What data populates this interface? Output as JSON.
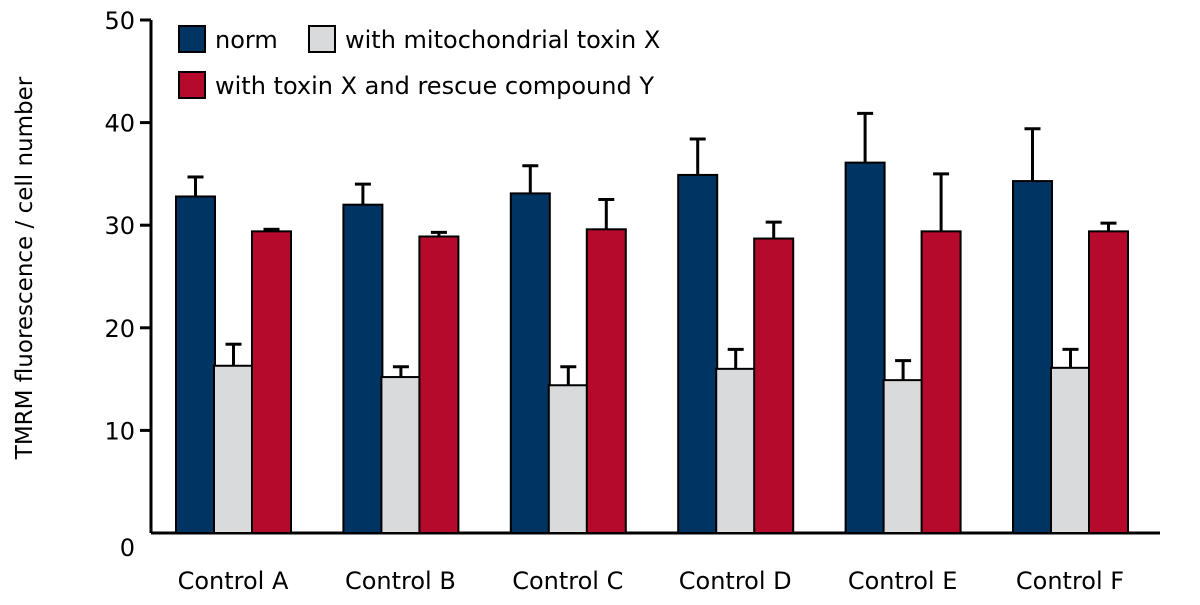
{
  "chart_data": {
    "type": "bar",
    "ylabel": "TMRM fluorescence / cell number",
    "xlabel": "",
    "ylim": [
      0,
      50
    ],
    "yticks": [
      0,
      10,
      20,
      30,
      40,
      50
    ],
    "categories": [
      "Control A",
      "Control B",
      "Control C",
      "Control D",
      "Control E",
      "Control F"
    ],
    "series": [
      {
        "name": "norm",
        "color": "#003463",
        "values": [
          32.8,
          32.0,
          33.1,
          34.9,
          36.1,
          34.3
        ],
        "errors": [
          1.9,
          2.0,
          2.7,
          3.5,
          4.8,
          5.1
        ]
      },
      {
        "name": "with mitochondrial toxin X",
        "color": "#d9dadb",
        "values": [
          16.3,
          15.2,
          14.4,
          16.0,
          14.9,
          16.1
        ],
        "errors": [
          2.1,
          1.0,
          1.8,
          1.9,
          1.9,
          1.8
        ]
      },
      {
        "name": "with toxin X and rescue compound Y",
        "color": "#b60a2c",
        "values": [
          29.4,
          28.9,
          29.6,
          28.7,
          29.4,
          29.4
        ],
        "errors": [
          0.2,
          0.4,
          2.9,
          1.6,
          5.6,
          0.8
        ]
      }
    ],
    "legend": "top-left, inside",
    "grid": false
  }
}
